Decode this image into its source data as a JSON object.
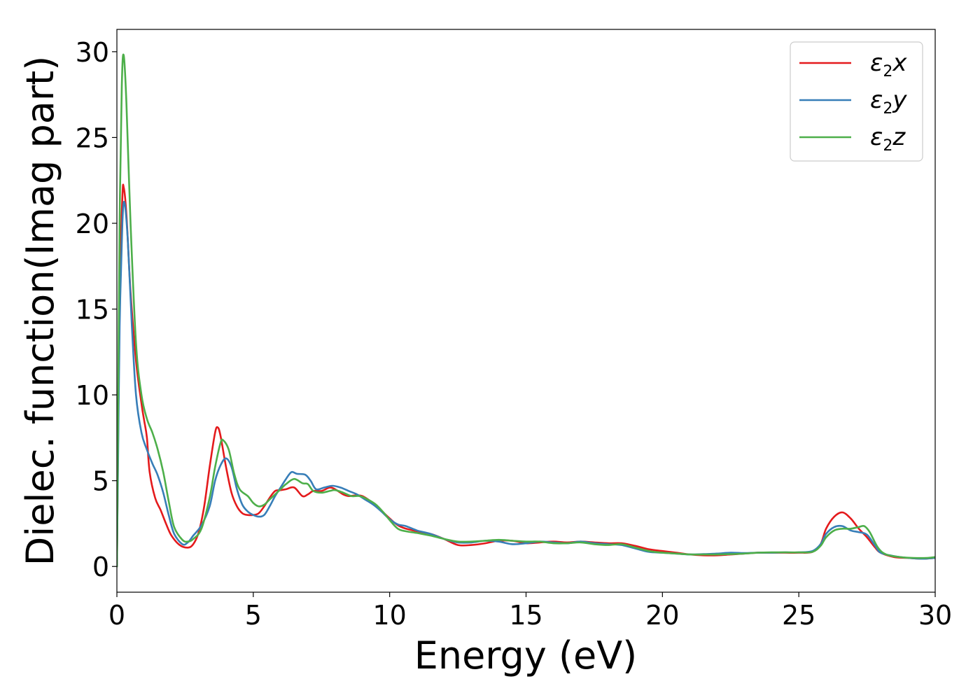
{
  "chart_data": {
    "type": "line",
    "title": "",
    "xlabel": "Energy (eV)",
    "ylabel": "Dielec. function(Imag part)",
    "xlim": [
      0,
      30
    ],
    "ylim": [
      -1.5,
      31.3
    ],
    "xticks": [
      0,
      5,
      10,
      15,
      20,
      25,
      30
    ],
    "yticks": [
      0,
      5,
      10,
      15,
      20,
      25,
      30
    ],
    "xtick_labels": [
      "0",
      "5",
      "10",
      "15",
      "20",
      "25",
      "30"
    ],
    "ytick_labels": [
      "0",
      "5",
      "10",
      "15",
      "20",
      "25",
      "30"
    ],
    "grid": false,
    "legend_position": "top-right",
    "series": [
      {
        "name": "ε₂x",
        "legend": {
          "base": "ε",
          "sub": "2",
          "suffix": "x"
        },
        "color": "#e41a1c",
        "points": [
          [
            0,
            0
          ],
          [
            0.05,
            8
          ],
          [
            0.1,
            16
          ],
          [
            0.2,
            21.5
          ],
          [
            0.25,
            22.1
          ],
          [
            0.35,
            20.5
          ],
          [
            0.5,
            16
          ],
          [
            0.7,
            12
          ],
          [
            0.9,
            9.5
          ],
          [
            1.0,
            8.5
          ],
          [
            1.1,
            7.5
          ],
          [
            1.2,
            5.5
          ],
          [
            1.4,
            4.0
          ],
          [
            1.6,
            3.3
          ],
          [
            1.8,
            2.5
          ],
          [
            2.0,
            1.8
          ],
          [
            2.3,
            1.25
          ],
          [
            2.6,
            1.1
          ],
          [
            2.8,
            1.3
          ],
          [
            3.0,
            2.0
          ],
          [
            3.2,
            3.5
          ],
          [
            3.4,
            5.8
          ],
          [
            3.6,
            7.8
          ],
          [
            3.7,
            8.1
          ],
          [
            3.8,
            7.6
          ],
          [
            4.0,
            5.8
          ],
          [
            4.2,
            4.3
          ],
          [
            4.4,
            3.5
          ],
          [
            4.6,
            3.1
          ],
          [
            4.8,
            3.0
          ],
          [
            5.0,
            3.0
          ],
          [
            5.2,
            3.1
          ],
          [
            5.4,
            3.5
          ],
          [
            5.6,
            4.0
          ],
          [
            5.8,
            4.4
          ],
          [
            6.0,
            4.45
          ],
          [
            6.2,
            4.5
          ],
          [
            6.5,
            4.6
          ],
          [
            6.8,
            4.1
          ],
          [
            7.0,
            4.2
          ],
          [
            7.2,
            4.4
          ],
          [
            7.5,
            4.4
          ],
          [
            7.8,
            4.6
          ],
          [
            8.0,
            4.5
          ],
          [
            8.3,
            4.2
          ],
          [
            8.5,
            4.1
          ],
          [
            8.8,
            4.15
          ],
          [
            9.0,
            4.1
          ],
          [
            9.3,
            3.8
          ],
          [
            9.6,
            3.4
          ],
          [
            10.0,
            2.8
          ],
          [
            10.3,
            2.4
          ],
          [
            10.6,
            2.2
          ],
          [
            11.0,
            2.05
          ],
          [
            11.5,
            1.9
          ],
          [
            12.0,
            1.6
          ],
          [
            12.5,
            1.25
          ],
          [
            13.0,
            1.25
          ],
          [
            13.5,
            1.35
          ],
          [
            14.0,
            1.5
          ],
          [
            14.5,
            1.5
          ],
          [
            15.0,
            1.35
          ],
          [
            15.5,
            1.4
          ],
          [
            16.0,
            1.45
          ],
          [
            16.5,
            1.4
          ],
          [
            17.0,
            1.45
          ],
          [
            17.5,
            1.4
          ],
          [
            18.0,
            1.35
          ],
          [
            18.5,
            1.35
          ],
          [
            19.0,
            1.2
          ],
          [
            19.5,
            1.0
          ],
          [
            20.0,
            0.9
          ],
          [
            20.5,
            0.8
          ],
          [
            21.0,
            0.7
          ],
          [
            21.5,
            0.65
          ],
          [
            22.0,
            0.65
          ],
          [
            22.5,
            0.7
          ],
          [
            23.0,
            0.75
          ],
          [
            23.5,
            0.8
          ],
          [
            24.0,
            0.8
          ],
          [
            24.5,
            0.8
          ],
          [
            25.0,
            0.8
          ],
          [
            25.5,
            0.85
          ],
          [
            25.8,
            1.3
          ],
          [
            26.0,
            2.2
          ],
          [
            26.3,
            2.9
          ],
          [
            26.6,
            3.15
          ],
          [
            26.9,
            2.8
          ],
          [
            27.2,
            2.2
          ],
          [
            27.5,
            1.7
          ],
          [
            27.8,
            1.1
          ],
          [
            28.0,
            0.8
          ],
          [
            28.5,
            0.55
          ],
          [
            29.0,
            0.5
          ],
          [
            29.5,
            0.45
          ],
          [
            30.0,
            0.5
          ]
        ]
      },
      {
        "name": "ε₂y",
        "legend": {
          "base": "ε",
          "sub": "2",
          "suffix": "y"
        },
        "color": "#377eb8",
        "points": [
          [
            0,
            0
          ],
          [
            0.05,
            7
          ],
          [
            0.1,
            14
          ],
          [
            0.2,
            20
          ],
          [
            0.28,
            21.2
          ],
          [
            0.4,
            19
          ],
          [
            0.55,
            14
          ],
          [
            0.7,
            10
          ],
          [
            0.9,
            7.8
          ],
          [
            1.1,
            6.8
          ],
          [
            1.3,
            6.0
          ],
          [
            1.5,
            5.3
          ],
          [
            1.7,
            4.3
          ],
          [
            1.9,
            3.0
          ],
          [
            2.1,
            1.9
          ],
          [
            2.4,
            1.3
          ],
          [
            2.6,
            1.4
          ],
          [
            2.8,
            1.8
          ],
          [
            3.1,
            2.4
          ],
          [
            3.4,
            3.5
          ],
          [
            3.6,
            5.0
          ],
          [
            3.8,
            5.9
          ],
          [
            4.0,
            6.3
          ],
          [
            4.2,
            5.8
          ],
          [
            4.4,
            4.5
          ],
          [
            4.6,
            3.6
          ],
          [
            4.8,
            3.2
          ],
          [
            5.0,
            3.0
          ],
          [
            5.2,
            2.9
          ],
          [
            5.4,
            3.0
          ],
          [
            5.6,
            3.5
          ],
          [
            5.8,
            4.1
          ],
          [
            6.0,
            4.6
          ],
          [
            6.2,
            5.1
          ],
          [
            6.4,
            5.5
          ],
          [
            6.6,
            5.4
          ],
          [
            6.9,
            5.35
          ],
          [
            7.1,
            5.0
          ],
          [
            7.3,
            4.5
          ],
          [
            7.6,
            4.6
          ],
          [
            7.9,
            4.7
          ],
          [
            8.2,
            4.6
          ],
          [
            8.5,
            4.4
          ],
          [
            8.8,
            4.2
          ],
          [
            9.1,
            3.9
          ],
          [
            9.4,
            3.6
          ],
          [
            9.7,
            3.2
          ],
          [
            10.0,
            2.75
          ],
          [
            10.3,
            2.45
          ],
          [
            10.6,
            2.35
          ],
          [
            11.0,
            2.1
          ],
          [
            11.5,
            1.9
          ],
          [
            12.0,
            1.6
          ],
          [
            12.5,
            1.4
          ],
          [
            13.0,
            1.4
          ],
          [
            13.5,
            1.5
          ],
          [
            14.0,
            1.45
          ],
          [
            14.5,
            1.3
          ],
          [
            15.0,
            1.35
          ],
          [
            15.5,
            1.45
          ],
          [
            16.0,
            1.4
          ],
          [
            16.5,
            1.35
          ],
          [
            17.0,
            1.45
          ],
          [
            17.5,
            1.35
          ],
          [
            18.0,
            1.3
          ],
          [
            18.5,
            1.25
          ],
          [
            19.0,
            1.05
          ],
          [
            19.5,
            0.85
          ],
          [
            20.0,
            0.8
          ],
          [
            20.5,
            0.75
          ],
          [
            21.0,
            0.7
          ],
          [
            21.5,
            0.72
          ],
          [
            22.0,
            0.75
          ],
          [
            22.5,
            0.8
          ],
          [
            23.0,
            0.78
          ],
          [
            23.5,
            0.8
          ],
          [
            24.0,
            0.8
          ],
          [
            24.5,
            0.82
          ],
          [
            25.0,
            0.82
          ],
          [
            25.5,
            0.9
          ],
          [
            25.8,
            1.3
          ],
          [
            26.0,
            1.9
          ],
          [
            26.3,
            2.3
          ],
          [
            26.6,
            2.35
          ],
          [
            26.9,
            2.1
          ],
          [
            27.2,
            2.0
          ],
          [
            27.5,
            1.85
          ],
          [
            27.8,
            1.2
          ],
          [
            28.0,
            0.8
          ],
          [
            28.5,
            0.6
          ],
          [
            29.0,
            0.5
          ],
          [
            29.5,
            0.45
          ],
          [
            30.0,
            0.5
          ]
        ]
      },
      {
        "name": "ε₂z",
        "legend": {
          "base": "ε",
          "sub": "2",
          "suffix": "z"
        },
        "color": "#4daf4a",
        "points": [
          [
            0,
            0
          ],
          [
            0.05,
            10
          ],
          [
            0.1,
            20
          ],
          [
            0.18,
            28
          ],
          [
            0.25,
            29.8
          ],
          [
            0.35,
            27
          ],
          [
            0.5,
            20
          ],
          [
            0.7,
            13
          ],
          [
            0.9,
            10
          ],
          [
            1.1,
            8.6
          ],
          [
            1.3,
            7.8
          ],
          [
            1.5,
            6.8
          ],
          [
            1.7,
            5.5
          ],
          [
            1.9,
            3.8
          ],
          [
            2.1,
            2.3
          ],
          [
            2.4,
            1.55
          ],
          [
            2.6,
            1.45
          ],
          [
            2.8,
            1.6
          ],
          [
            3.1,
            2.2
          ],
          [
            3.4,
            4.0
          ],
          [
            3.6,
            5.8
          ],
          [
            3.8,
            7.2
          ],
          [
            3.9,
            7.35
          ],
          [
            4.1,
            6.8
          ],
          [
            4.3,
            5.4
          ],
          [
            4.5,
            4.5
          ],
          [
            4.8,
            4.1
          ],
          [
            5.0,
            3.7
          ],
          [
            5.2,
            3.5
          ],
          [
            5.4,
            3.6
          ],
          [
            5.6,
            3.9
          ],
          [
            5.8,
            4.2
          ],
          [
            6.0,
            4.5
          ],
          [
            6.2,
            4.8
          ],
          [
            6.5,
            5.1
          ],
          [
            6.8,
            4.85
          ],
          [
            7.0,
            4.8
          ],
          [
            7.2,
            4.4
          ],
          [
            7.5,
            4.3
          ],
          [
            7.8,
            4.4
          ],
          [
            8.0,
            4.45
          ],
          [
            8.3,
            4.3
          ],
          [
            8.6,
            4.1
          ],
          [
            8.9,
            4.1
          ],
          [
            9.2,
            3.9
          ],
          [
            9.5,
            3.6
          ],
          [
            9.8,
            3.1
          ],
          [
            10.0,
            2.7
          ],
          [
            10.3,
            2.2
          ],
          [
            10.6,
            2.05
          ],
          [
            11.0,
            1.95
          ],
          [
            11.5,
            1.8
          ],
          [
            12.0,
            1.6
          ],
          [
            12.5,
            1.45
          ],
          [
            13.0,
            1.45
          ],
          [
            13.5,
            1.5
          ],
          [
            14.0,
            1.55
          ],
          [
            14.5,
            1.5
          ],
          [
            15.0,
            1.45
          ],
          [
            15.5,
            1.45
          ],
          [
            16.0,
            1.35
          ],
          [
            16.5,
            1.35
          ],
          [
            17.0,
            1.4
          ],
          [
            17.5,
            1.3
          ],
          [
            18.0,
            1.25
          ],
          [
            18.5,
            1.3
          ],
          [
            19.0,
            1.1
          ],
          [
            19.5,
            0.9
          ],
          [
            20.0,
            0.8
          ],
          [
            20.5,
            0.75
          ],
          [
            21.0,
            0.7
          ],
          [
            21.5,
            0.7
          ],
          [
            22.0,
            0.7
          ],
          [
            22.5,
            0.72
          ],
          [
            23.0,
            0.75
          ],
          [
            23.5,
            0.8
          ],
          [
            24.0,
            0.82
          ],
          [
            24.5,
            0.82
          ],
          [
            25.0,
            0.82
          ],
          [
            25.5,
            0.85
          ],
          [
            25.8,
            1.2
          ],
          [
            26.0,
            1.7
          ],
          [
            26.3,
            2.1
          ],
          [
            26.6,
            2.2
          ],
          [
            26.9,
            2.2
          ],
          [
            27.2,
            2.3
          ],
          [
            27.4,
            2.35
          ],
          [
            27.6,
            2.0
          ],
          [
            27.9,
            1.1
          ],
          [
            28.2,
            0.7
          ],
          [
            28.7,
            0.55
          ],
          [
            29.2,
            0.5
          ],
          [
            29.7,
            0.5
          ],
          [
            30.0,
            0.55
          ]
        ]
      }
    ]
  }
}
